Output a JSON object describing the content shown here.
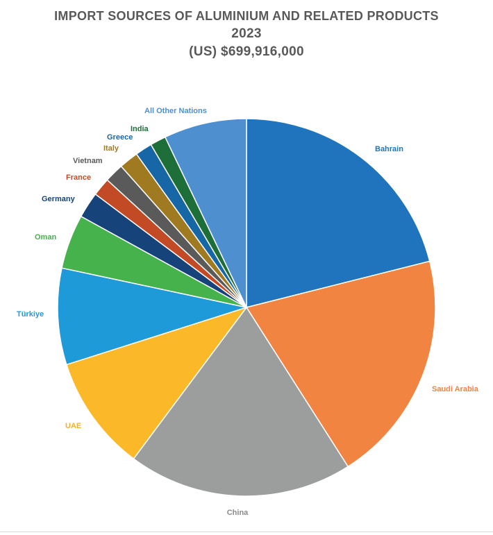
{
  "chart_data": {
    "type": "pie",
    "title_lines": [
      "IMPORT SOURCES OF ALUMINIUM AND RELATED PRODUCTS",
      "2023",
      "(US) $699,916,000"
    ],
    "slices": [
      {
        "label": "Bahrain",
        "value": 21.7,
        "color": "#1f74bd",
        "label_color": "#1f74bd"
      },
      {
        "label": "Saudi Arabia",
        "value": 20.5,
        "color": "#f08440",
        "label_color": "#f08440"
      },
      {
        "label": "China",
        "value": 19.8,
        "color": "#9c9e9e",
        "label_color": "#8a8a8a"
      },
      {
        "label": "UAE",
        "value": 10.2,
        "color": "#fbb829",
        "label_color": "#f5b01f"
      },
      {
        "label": "Türkiye",
        "value": 8.5,
        "color": "#1e9ad9",
        "label_color": "#1e9ad9"
      },
      {
        "label": "Oman",
        "value": 4.8,
        "color": "#45b24b",
        "label_color": "#45b24b"
      },
      {
        "label": "Germany",
        "value": 2.3,
        "color": "#15437a",
        "label_color": "#15437a"
      },
      {
        "label": "France",
        "value": 1.6,
        "color": "#c24b26",
        "label_color": "#c24b26"
      },
      {
        "label": "Vietnam",
        "value": 1.7,
        "color": "#5a5a5a",
        "label_color": "#5a5a5a"
      },
      {
        "label": "Italy",
        "value": 1.7,
        "color": "#a07a20",
        "label_color": "#a07a20"
      },
      {
        "label": "Greece",
        "value": 1.5,
        "color": "#1767a6",
        "label_color": "#1767a6"
      },
      {
        "label": "India",
        "value": 1.4,
        "color": "#1e6e3a",
        "label_color": "#1e6e3a"
      },
      {
        "label": "All Other Nations",
        "value": 7.3,
        "color": "#4e8fd0",
        "label_color": "#4e8fd0"
      }
    ]
  }
}
